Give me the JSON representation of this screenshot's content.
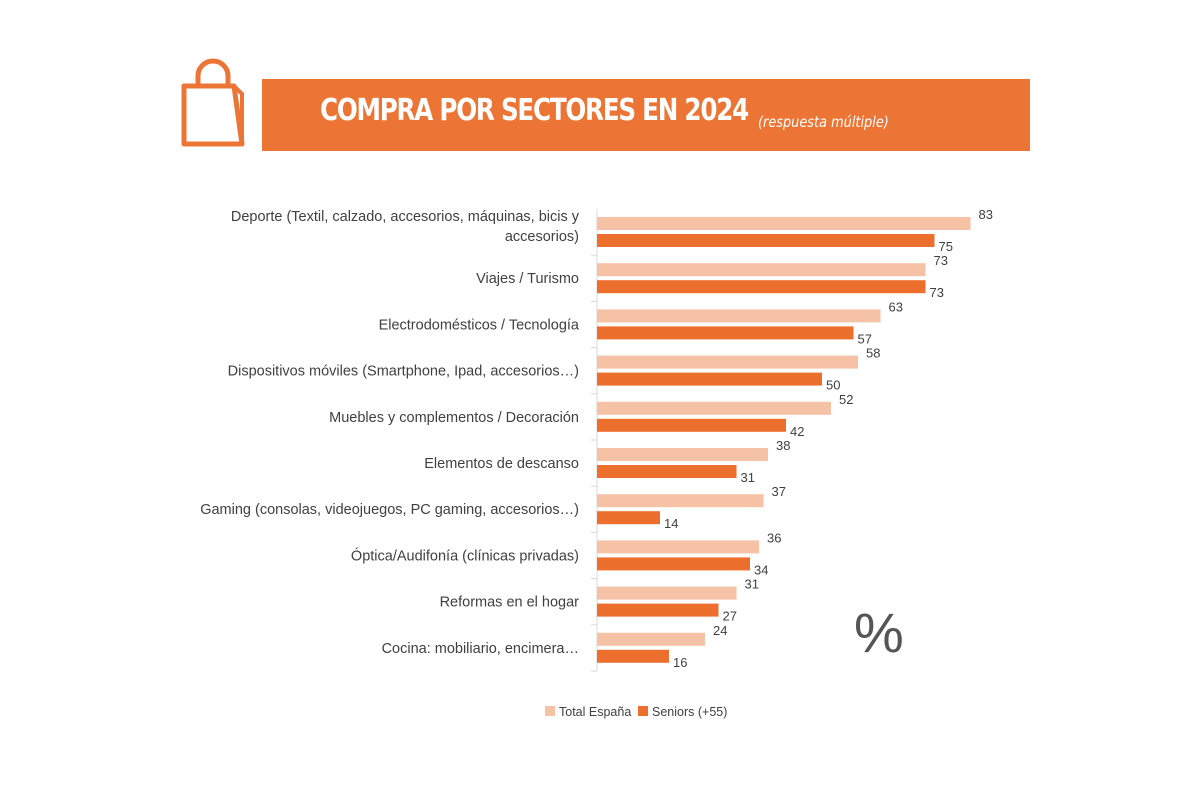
{
  "header": {
    "title": "COMPRA POR SECTORES EN 2024",
    "subtitle": "(respuesta múltiple)",
    "icon": "shopping-bag-icon"
  },
  "colors": {
    "accent": "#ec7434",
    "series_total": "#f6c2a6",
    "series_seniors": "#ec6f2e",
    "axis": "#d9d9d9"
  },
  "unit_symbol": "%",
  "chart_data": {
    "type": "bar",
    "orientation": "horizontal",
    "categories": [
      [
        "Deporte (Textil, calzado, accesorios, máquinas, bicis y",
        "accesorios)"
      ],
      [
        "Viajes / Turismo"
      ],
      [
        "Electrodomésticos / Tecnología"
      ],
      [
        "Dispositivos móviles (Smartphone, Ipad, accesorios…)"
      ],
      [
        "Muebles y complementos / Decoración"
      ],
      [
        "Elementos de descanso"
      ],
      [
        "Gaming (consolas, videojuegos, PC gaming, accesorios…)"
      ],
      [
        "Óptica/Audifonía (clínicas privadas)"
      ],
      [
        "Reformas en el hogar"
      ],
      [
        "Cocina: mobiliario, encimera…"
      ]
    ],
    "series": [
      {
        "name": "Total España",
        "values": [
          83,
          73,
          63,
          58,
          52,
          38,
          37,
          36,
          31,
          24
        ]
      },
      {
        "name": "Seniors (+55)",
        "values": [
          75,
          73,
          57,
          50,
          42,
          31,
          14,
          34,
          27,
          16
        ]
      }
    ],
    "xlim": [
      0,
      100
    ],
    "grid": false,
    "legend_position": "bottom"
  }
}
